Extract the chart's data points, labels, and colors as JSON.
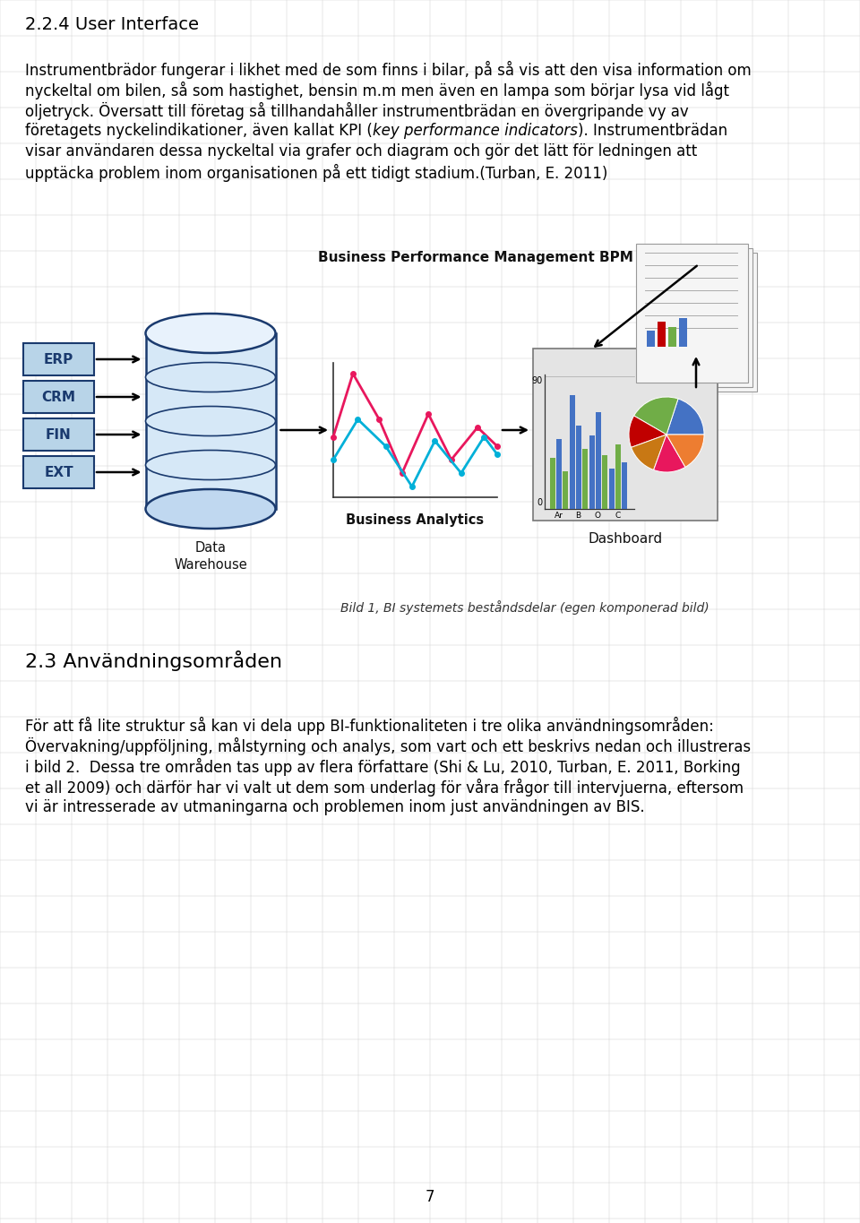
{
  "bg_color": "#ffffff",
  "heading1": "2.2.4 User Interface",
  "p1_line0": "Instrumentbrädor fungerar i likhet med de som finns i bilar, på så vis att den visa information om",
  "p1_line1": "nyckeltal om bilen, så som hastighet, bensin m.m men även en lampa som börjar lysa vid lågt",
  "p1_line2": "oljetryck. Översatt till företag så tillhandahåller instrumentbrädan en övergripande vy av",
  "p1_line3a": "företagets nyckelindikationer, även kallat KPI (",
  "p1_line3b": "key performance indicators",
  "p1_line3c": "). Instrumentbrädan",
  "p1_line4": "visar användaren dessa nyckeltal via grafer och diagram och gör det lätt för ledningen att",
  "p1_line5": "upptäcka problem inom organisationen på ett tidigt stadium.(Turban, E. 2011)",
  "caption": "Bild 1, BI systemets beståndsdelar (egen komponerad bild)",
  "heading2": "2.3 Användningsområden",
  "p2_line0": "För att få lite struktur så kan vi dela upp BI-funktionaliteten i tre olika användningsområden:",
  "p2_line1": "Övervakning/uppföljning, målstyrning och analys, som vart och ett beskrivs nedan och illustreras",
  "p2_line2": "i bild 2.  Dessa tre områden tas upp av flera författare (Shi & Lu, 2010, Turban, E. 2011, Borking",
  "p2_line3": "et all 2009) och därför har vi valt ut dem som underlag för våra frågor till intervjuerna, eftersom",
  "p2_line4": "vi är intresserade av utmaningarna och problemen inom just användningen av BIS.",
  "page_number": "7",
  "text_color": "#000000",
  "grid_color": "#c8c8c8",
  "box_labels": [
    "ERP",
    "CRM",
    "FIN",
    "EXT"
  ],
  "box_fill": "#b8d4e8",
  "box_border": "#1a3a6e",
  "bpm_label": "Business Performance Management BPM",
  "analytics_label": "Business Analytics",
  "dw_label": "Data\nWarehouse",
  "dashboard_label": "Dashboard"
}
